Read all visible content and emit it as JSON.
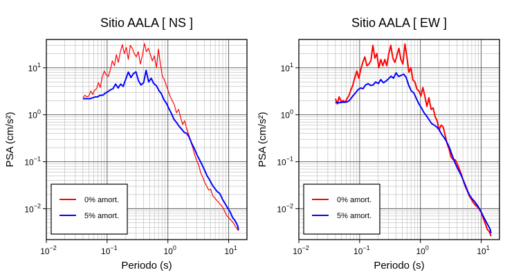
{
  "chart_data": [
    {
      "type": "line",
      "title": "Sitio AALA [ NS ]",
      "xlabel": "Periodo (s)",
      "ylabel": "PSA (cm/s²)",
      "xscale": "log",
      "yscale": "log",
      "xlim": [
        0.01,
        20
      ],
      "ylim": [
        0.0022,
        40
      ],
      "xticks": [
        {
          "value": 0.01,
          "base": "10",
          "exp": "−2"
        },
        {
          "value": 0.1,
          "base": "10",
          "exp": "−1"
        },
        {
          "value": 1,
          "base": "10",
          "exp": "0"
        },
        {
          "value": 10,
          "base": "10",
          "exp": "1"
        }
      ],
      "yticks": [
        {
          "value": 0.01,
          "base": "10",
          "exp": "−2"
        },
        {
          "value": 0.1,
          "base": "10",
          "exp": "−1"
        },
        {
          "value": 1,
          "base": "10",
          "exp": "0"
        },
        {
          "value": 10,
          "base": "10",
          "exp": "1"
        }
      ],
      "grid": true,
      "legend_position": "bottom-left",
      "series": [
        {
          "name": "0% amort.",
          "color": "#ff0000",
          "x": [
            0.04,
            0.043,
            0.046,
            0.05,
            0.054,
            0.058,
            0.062,
            0.067,
            0.072,
            0.077,
            0.083,
            0.09,
            0.097,
            0.105,
            0.113,
            0.122,
            0.132,
            0.142,
            0.153,
            0.165,
            0.178,
            0.192,
            0.207,
            0.223,
            0.241,
            0.26,
            0.28,
            0.302,
            0.326,
            0.352,
            0.38,
            0.41,
            0.442,
            0.477,
            0.515,
            0.556,
            0.6,
            0.647,
            0.698,
            0.753,
            0.813,
            0.877,
            0.947,
            1.02,
            1.1,
            1.19,
            1.28,
            1.38,
            1.5,
            1.62,
            1.75,
            1.88,
            2.03,
            2.2,
            2.37,
            2.56,
            2.76,
            2.98,
            3.21,
            3.47,
            3.74,
            4.04,
            4.36,
            4.7,
            5.07,
            5.47,
            5.9,
            6.37,
            6.87,
            7.42,
            8.0,
            8.64,
            9.32,
            10.06,
            10.85,
            11.71,
            12.64,
            13.6,
            14.5
          ],
          "y": [
            2.3,
            2.6,
            2.4,
            2.5,
            3.2,
            2.7,
            3.3,
            3.6,
            4.8,
            3.8,
            6.2,
            8.5,
            7.0,
            6.5,
            9.2,
            14,
            11,
            19,
            13,
            22,
            31,
            20,
            27,
            15,
            30,
            26,
            20,
            17,
            22,
            12,
            18,
            33,
            22,
            26,
            19,
            14,
            18,
            10,
            25,
            12,
            6.5,
            5.5,
            4.2,
            3.1,
            2.4,
            1.95,
            1.62,
            1.1,
            1.3,
            0.88,
            0.62,
            0.75,
            0.52,
            0.38,
            0.27,
            0.2,
            0.14,
            0.105,
            0.085,
            0.058,
            0.047,
            0.036,
            0.03,
            0.025,
            0.026,
            0.019,
            0.017,
            0.015,
            0.0135,
            0.012,
            0.0107,
            0.0087,
            0.0071,
            0.0064,
            0.0057,
            0.0052,
            0.0044,
            0.0038,
            0.0034
          ]
        },
        {
          "name": "5% amort.",
          "color": "#0000ff",
          "x": [
            0.04,
            0.046,
            0.052,
            0.058,
            0.064,
            0.07,
            0.077,
            0.085,
            0.094,
            0.103,
            0.114,
            0.125,
            0.138,
            0.152,
            0.167,
            0.184,
            0.203,
            0.223,
            0.246,
            0.271,
            0.298,
            0.328,
            0.361,
            0.398,
            0.438,
            0.482,
            0.531,
            0.585,
            0.644,
            0.709,
            0.781,
            0.86,
            0.947,
            1.04,
            1.15,
            1.26,
            1.39,
            1.53,
            1.69,
            1.86,
            2.05,
            2.25,
            2.48,
            2.73,
            3.01,
            3.31,
            3.65,
            4.02,
            4.42,
            4.87,
            5.36,
            5.9,
            6.5,
            7.16,
            7.88,
            8.68,
            9.56,
            10.5,
            11.6,
            12.8,
            14.1,
            14.5
          ],
          "y": [
            2.2,
            2.2,
            2.2,
            2.3,
            2.4,
            2.4,
            2.6,
            2.6,
            2.9,
            3.1,
            3.4,
            3.6,
            4.5,
            3.7,
            4.5,
            4.0,
            5.8,
            8.1,
            6.2,
            7.5,
            8.2,
            5.3,
            4.3,
            4.8,
            8.8,
            5.0,
            6.0,
            4.6,
            4.2,
            3.3,
            2.8,
            2.1,
            1.75,
            1.35,
            1.05,
            0.8,
            0.68,
            0.57,
            0.49,
            0.42,
            0.4,
            0.33,
            0.24,
            0.19,
            0.14,
            0.11,
            0.086,
            0.066,
            0.05,
            0.041,
            0.032,
            0.027,
            0.023,
            0.021,
            0.016,
            0.013,
            0.0105,
            0.0087,
            0.0065,
            0.0055,
            0.0043,
            0.0035
          ]
        }
      ]
    },
    {
      "type": "line",
      "title": "Sitio AALA [ EW ]",
      "xlabel": "Periodo (s)",
      "ylabel": "PSA (cm/s²)",
      "xscale": "log",
      "yscale": "log",
      "xlim": [
        0.01,
        20
      ],
      "ylim": [
        0.0022,
        40
      ],
      "xticks": [
        {
          "value": 0.01,
          "base": "10",
          "exp": "−2"
        },
        {
          "value": 0.1,
          "base": "10",
          "exp": "−1"
        },
        {
          "value": 1,
          "base": "10",
          "exp": "0"
        },
        {
          "value": 10,
          "base": "10",
          "exp": "1"
        }
      ],
      "yticks": [
        {
          "value": 0.01,
          "base": "10",
          "exp": "−2"
        },
        {
          "value": 0.1,
          "base": "10",
          "exp": "−1"
        },
        {
          "value": 1,
          "base": "10",
          "exp": "0"
        },
        {
          "value": 10,
          "base": "10",
          "exp": "1"
        }
      ],
      "grid": true,
      "legend_position": "bottom-left",
      "series": [
        {
          "name": "0% amort.",
          "color": "#ff0000",
          "x": [
            0.04,
            0.043,
            0.046,
            0.05,
            0.054,
            0.058,
            0.062,
            0.067,
            0.072,
            0.077,
            0.083,
            0.09,
            0.097,
            0.105,
            0.113,
            0.122,
            0.132,
            0.142,
            0.153,
            0.165,
            0.178,
            0.192,
            0.207,
            0.223,
            0.241,
            0.26,
            0.28,
            0.302,
            0.326,
            0.352,
            0.38,
            0.41,
            0.442,
            0.477,
            0.515,
            0.556,
            0.6,
            0.647,
            0.698,
            0.753,
            0.813,
            0.877,
            0.947,
            1.02,
            1.1,
            1.19,
            1.28,
            1.38,
            1.5,
            1.62,
            1.75,
            1.88,
            2.03,
            2.2,
            2.37,
            2.56,
            2.76,
            2.98,
            3.21,
            3.47,
            3.74,
            4.04,
            4.36,
            4.7,
            5.07,
            5.47,
            5.9,
            6.37,
            6.87,
            7.42,
            8.0,
            8.64,
            9.32,
            10.06,
            10.85,
            11.71,
            12.64,
            13.6,
            14.5
          ],
          "y": [
            2.2,
            1.7,
            2.4,
            1.9,
            2.0,
            1.85,
            2.2,
            2.6,
            3.4,
            4.2,
            6.0,
            8.5,
            6.0,
            9.5,
            13,
            17,
            11,
            12,
            14,
            30,
            16,
            20,
            10,
            15,
            11,
            15,
            11,
            20,
            30,
            16,
            13,
            18,
            26,
            15,
            12,
            32,
            17,
            8.0,
            10,
            5.5,
            5.0,
            3.5,
            3.2,
            2.5,
            3.8,
            2.4,
            1.5,
            2.3,
            1.3,
            1.4,
            0.9,
            0.75,
            0.48,
            0.6,
            0.55,
            0.36,
            0.24,
            0.18,
            0.125,
            0.11,
            0.11,
            0.09,
            0.07,
            0.055,
            0.04,
            0.03,
            0.024,
            0.019,
            0.016,
            0.0135,
            0.012,
            0.011,
            0.0097,
            0.0082,
            0.0062,
            0.0048,
            0.0036,
            0.0033,
            0.0026
          ]
        },
        {
          "name": "5% amort.",
          "color": "#0000ff",
          "x": [
            0.04,
            0.046,
            0.052,
            0.058,
            0.064,
            0.07,
            0.077,
            0.085,
            0.094,
            0.103,
            0.114,
            0.125,
            0.138,
            0.152,
            0.167,
            0.184,
            0.203,
            0.223,
            0.246,
            0.271,
            0.298,
            0.328,
            0.361,
            0.398,
            0.438,
            0.482,
            0.531,
            0.585,
            0.644,
            0.709,
            0.781,
            0.86,
            0.947,
            1.04,
            1.15,
            1.26,
            1.39,
            1.53,
            1.69,
            1.86,
            2.05,
            2.25,
            2.48,
            2.73,
            3.01,
            3.31,
            3.65,
            4.02,
            4.42,
            4.87,
            5.36,
            5.9,
            6.5,
            7.16,
            7.88,
            8.68,
            9.56,
            10.5,
            11.6,
            12.8,
            14.1,
            14.5
          ],
          "y": [
            1.8,
            1.8,
            1.85,
            1.85,
            1.9,
            2.1,
            2.5,
            2.9,
            3.4,
            3.7,
            3.6,
            4.3,
            4.6,
            4.2,
            4.3,
            5.0,
            4.6,
            5.6,
            4.8,
            5.2,
            5.8,
            6.6,
            6.0,
            7.8,
            6.5,
            6.9,
            7.3,
            6.2,
            4.2,
            3.2,
            2.9,
            2.2,
            1.7,
            1.4,
            1.1,
            0.95,
            0.78,
            0.65,
            0.6,
            0.55,
            0.47,
            0.38,
            0.32,
            0.26,
            0.2,
            0.14,
            0.1,
            0.075,
            0.06,
            0.046,
            0.034,
            0.025,
            0.019,
            0.016,
            0.014,
            0.0117,
            0.0096,
            0.0075,
            0.0058,
            0.0046,
            0.0036,
            0.003
          ]
        }
      ]
    }
  ]
}
